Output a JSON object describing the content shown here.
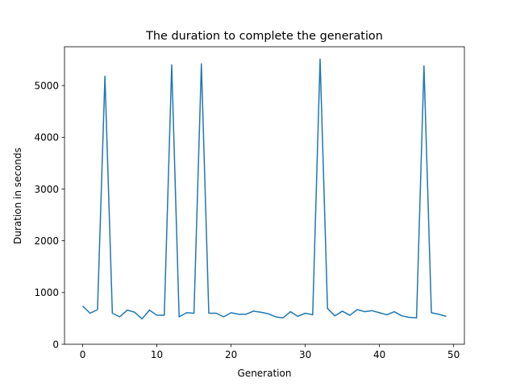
{
  "chart_data": {
    "type": "line",
    "title": "The duration to complete the generation",
    "xlabel": "Generation",
    "ylabel": "Duration in seconds",
    "xlim": [
      -2.45,
      51.45
    ],
    "ylim": [
      0,
      5750
    ],
    "x_ticks": [
      0,
      10,
      20,
      30,
      40,
      50
    ],
    "y_ticks": [
      0,
      1000,
      2000,
      3000,
      4000,
      5000
    ],
    "grid": false,
    "line_color": "#1f77b4",
    "series": [
      {
        "x": [
          0,
          1,
          2,
          3,
          4,
          5,
          6,
          7,
          8,
          9,
          10,
          11,
          12,
          13,
          14,
          15,
          16,
          17,
          18,
          19,
          20,
          21,
          22,
          23,
          24,
          25,
          26,
          27,
          28,
          29,
          30,
          31,
          32,
          33,
          34,
          35,
          36,
          37,
          38,
          39,
          40,
          41,
          42,
          43,
          44,
          45,
          46,
          47,
          48,
          49
        ],
        "values": [
          740,
          600,
          670,
          5180,
          600,
          530,
          660,
          620,
          490,
          660,
          560,
          560,
          5400,
          530,
          610,
          600,
          5420,
          600,
          600,
          530,
          610,
          580,
          580,
          640,
          620,
          590,
          530,
          510,
          630,
          540,
          600,
          570,
          5510,
          690,
          550,
          640,
          560,
          670,
          630,
          650,
          610,
          570,
          630,
          550,
          520,
          510,
          5380,
          610,
          580,
          540
        ]
      }
    ]
  }
}
